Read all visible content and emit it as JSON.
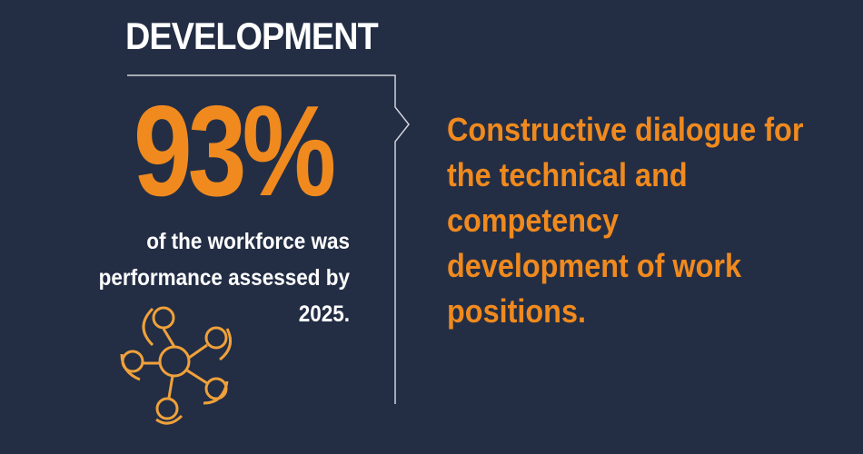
{
  "section": {
    "title": "DEVELOPMENT",
    "stat": "93%",
    "stat_description": "of the workforce was performance assessed by 2025.",
    "headline": "Constructive dialogue for the technical and competency development of work positions."
  }
}
